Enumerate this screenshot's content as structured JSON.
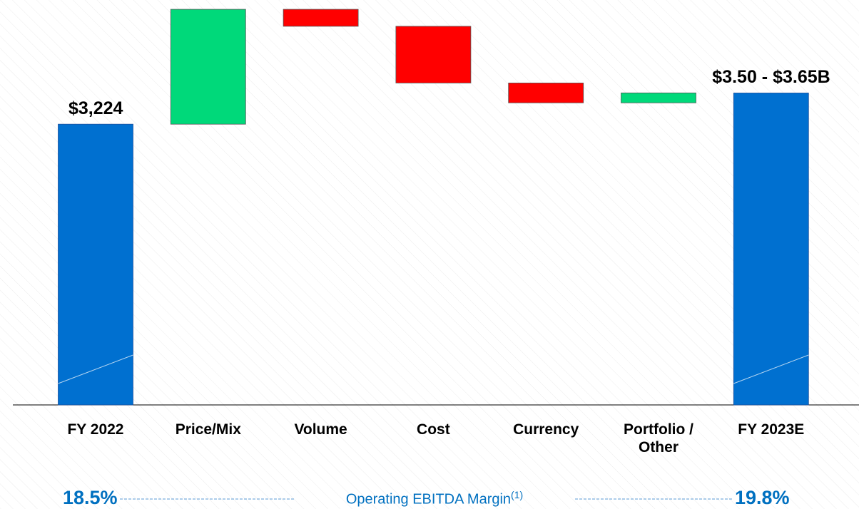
{
  "chart_data": {
    "type": "waterfall",
    "categories": [
      "FY 2022",
      "Price/Mix",
      "Volume",
      "Cost",
      "Currency",
      "Portfolio / Other",
      "FY 2023E"
    ],
    "values": [
      3224,
      1319,
      -195,
      -651,
      -228,
      114,
      3582
    ],
    "total": [
      true,
      false,
      false,
      false,
      false,
      false,
      true
    ],
    "value_labels": [
      "$3,224",
      null,
      null,
      null,
      null,
      null,
      "$3.50 - $3.65B"
    ],
    "colors": {
      "total": "#0070d0",
      "increase": "#00d97a",
      "decrease": "#ff0000"
    },
    "ylim": [
      0,
      4650
    ],
    "margin_label": "Operating EBITDA Margin",
    "margin_note": "(1)",
    "margins": [
      18.5,
      19.8
    ],
    "margin_labels": [
      "18.5%",
      "19.8%"
    ]
  }
}
